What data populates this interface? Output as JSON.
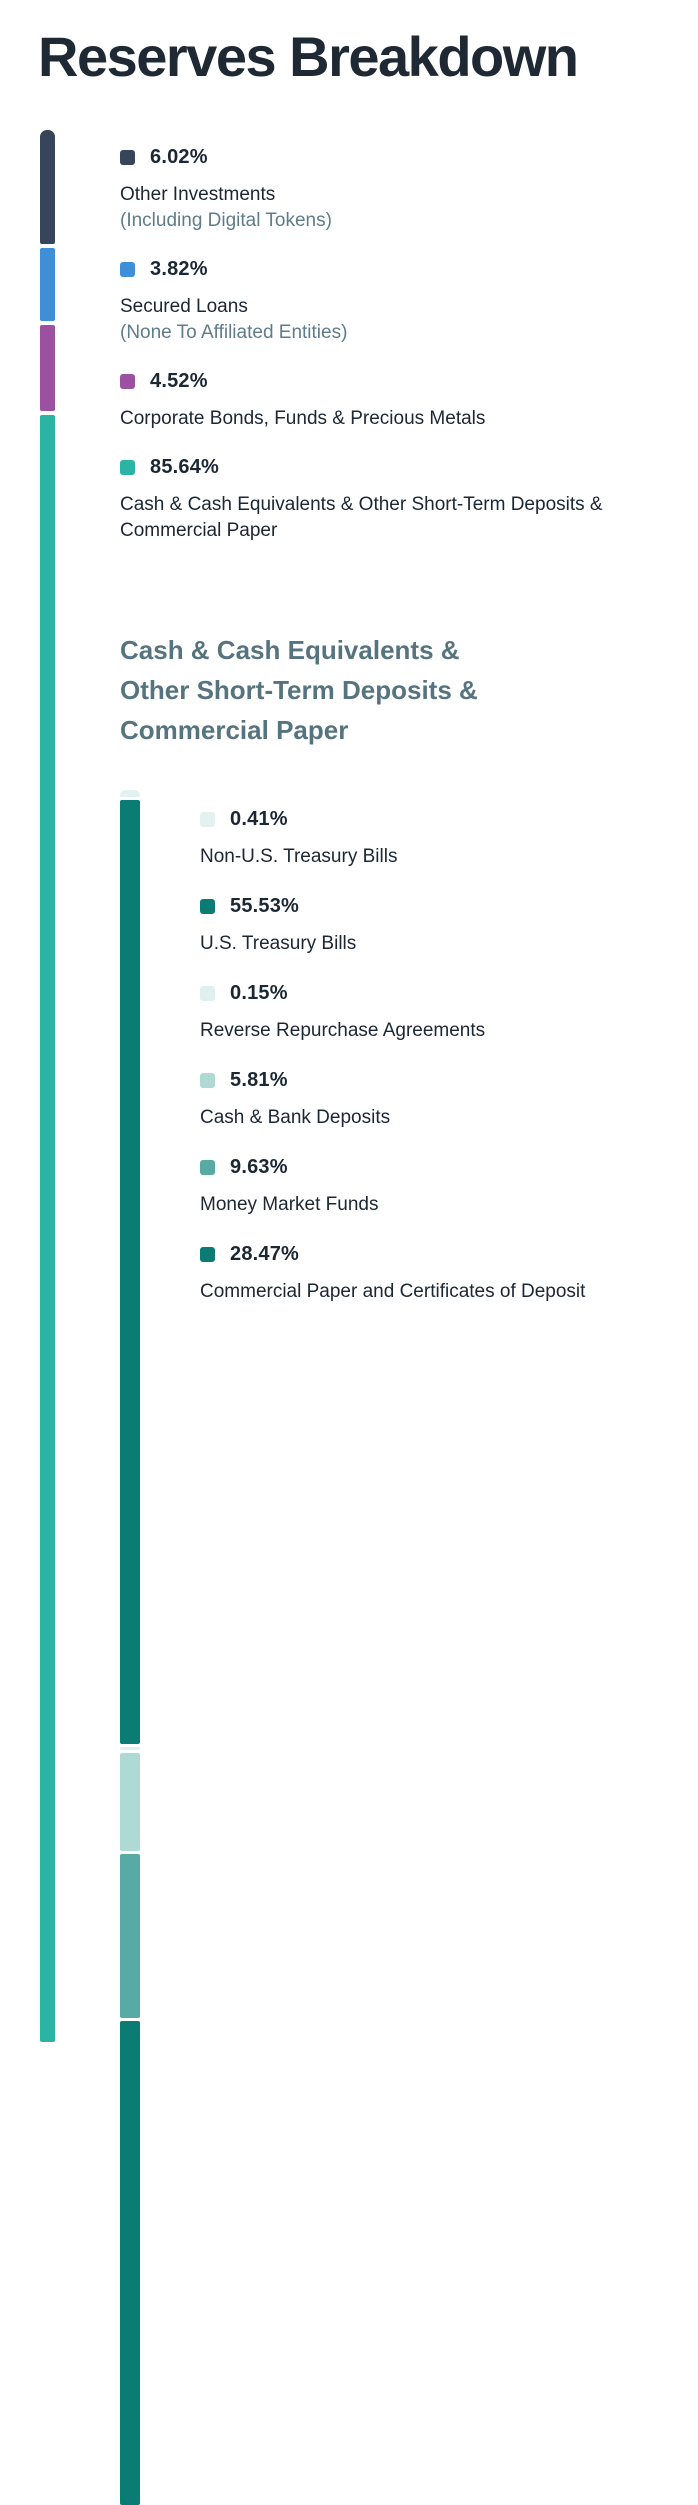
{
  "page": {
    "title": "Reserves Breakdown"
  },
  "section2": {
    "heading": "Cash & Cash Equivalents & Other Short-Term Deposits & Commercial Paper"
  },
  "colors": {
    "background": "#FFFFFF",
    "title_text": "#1F2933",
    "label_text": "#1B2733",
    "sublabel_text": "#5E7C8A",
    "section_heading_text": "#56747F"
  },
  "chart_data": [
    {
      "type": "bar",
      "variant": "stacked-vertical",
      "title": "Reserves Breakdown",
      "unit": "%",
      "total": 100,
      "legend_position": "right",
      "segments": [
        {
          "label": "Other Investments",
          "sublabel": "(Including Digital Tokens)",
          "pct": "6.02%",
          "value": 6.02,
          "color": "#36455A"
        },
        {
          "label": "Secured Loans",
          "sublabel": "(None To Affiliated Entities)",
          "pct": "3.82%",
          "value": 3.82,
          "color": "#3E8FD8"
        },
        {
          "label": "Corporate Bonds, Funds & Precious Metals",
          "sublabel": "",
          "pct": "4.52%",
          "value": 4.52,
          "color": "#9B51A0"
        },
        {
          "label": "Cash & Cash Equivalents & Other Short-Term Deposits & Commercial Paper",
          "sublabel": "",
          "pct": "85.64%",
          "value": 85.64,
          "color": "#2BB3A3"
        }
      ]
    },
    {
      "type": "bar",
      "variant": "stacked-vertical",
      "title": "Cash & Cash Equivalents & Other Short-Term Deposits & Commercial Paper",
      "unit": "%",
      "total": 100,
      "legend_position": "right",
      "segments": [
        {
          "label": "Non-U.S. Treasury Bills",
          "sublabel": "",
          "pct": "0.41%",
          "value": 0.41,
          "color": "#E3F2F0"
        },
        {
          "label": "U.S. Treasury Bills",
          "sublabel": "",
          "pct": "55.53%",
          "value": 55.53,
          "color": "#0A7C73"
        },
        {
          "label": "Reverse Repurchase Agreements",
          "sublabel": "",
          "pct": "0.15%",
          "value": 0.15,
          "color": "#E0F0EE"
        },
        {
          "label": "Cash & Bank Deposits",
          "sublabel": "",
          "pct": "5.81%",
          "value": 5.81,
          "color": "#AFD9D5"
        },
        {
          "label": "Money Market Funds",
          "sublabel": "",
          "pct": "9.63%",
          "value": 9.63,
          "color": "#57ABA4"
        },
        {
          "label": "Commercial Paper and Certificates of Deposit",
          "sublabel": "",
          "pct": "28.47%",
          "value": 28.47,
          "color": "#0A7C73"
        }
      ]
    }
  ]
}
